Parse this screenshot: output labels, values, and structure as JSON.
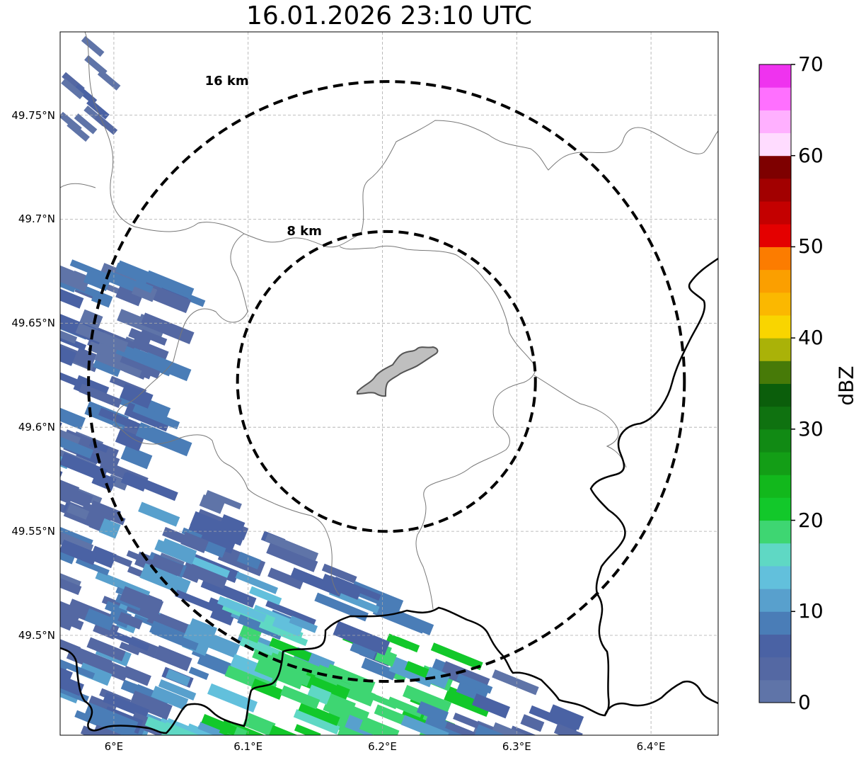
{
  "title": "16.01.2026 23:10 UTC",
  "map": {
    "lon_range": [
      5.96,
      6.45
    ],
    "lat_range": [
      49.452,
      49.79
    ],
    "lat_ticks": [
      {
        "value": 49.75,
        "label": "49.75°N"
      },
      {
        "value": 49.7,
        "label": "49.7°N"
      },
      {
        "value": 49.65,
        "label": "49.65°N"
      },
      {
        "value": 49.6,
        "label": "49.6°N"
      },
      {
        "value": 49.55,
        "label": "49.55°N"
      },
      {
        "value": 49.5,
        "label": "49.5°N"
      }
    ],
    "lon_ticks": [
      {
        "value": 6.0,
        "label": "6°E"
      },
      {
        "value": 6.1,
        "label": "6.1°E"
      },
      {
        "value": 6.2,
        "label": "6.2°E"
      },
      {
        "value": 6.3,
        "label": "6.3°E"
      },
      {
        "value": 6.4,
        "label": "6.4°E"
      }
    ],
    "rings": [
      {
        "radius_km": 16,
        "label": "16 km"
      },
      {
        "radius_km": 8,
        "label": "8 km"
      }
    ],
    "center": {
      "lon": 6.203,
      "lat": 49.622
    },
    "grid": true
  },
  "colorbar": {
    "label": "dBZ",
    "min": 0,
    "max": 70,
    "ticks": [
      {
        "value": 70,
        "label": "70"
      },
      {
        "value": 60,
        "label": "60"
      },
      {
        "value": 50,
        "label": "50"
      },
      {
        "value": 40,
        "label": "40"
      },
      {
        "value": 30,
        "label": "30"
      },
      {
        "value": 20,
        "label": "20"
      },
      {
        "value": 10,
        "label": "10"
      },
      {
        "value": 0,
        "label": "0"
      }
    ],
    "colors": [
      "#5f74a8",
      "#5468a3",
      "#4a62a4",
      "#4a7db7",
      "#58a0cd",
      "#62c0dc",
      "#5fd8c4",
      "#3ed672",
      "#12c82a",
      "#12b81c",
      "#139e16",
      "#118a14",
      "#0f7210",
      "#0b5e0b",
      "#477a08",
      "#aab208",
      "#f9d500",
      "#fbb800",
      "#fb9f00",
      "#fc7c00",
      "#e40000",
      "#c40000",
      "#a20000",
      "#7e0000",
      "#ffdcff",
      "#ffb0ff",
      "#ff70ff",
      "#ef33ef"
    ]
  }
}
